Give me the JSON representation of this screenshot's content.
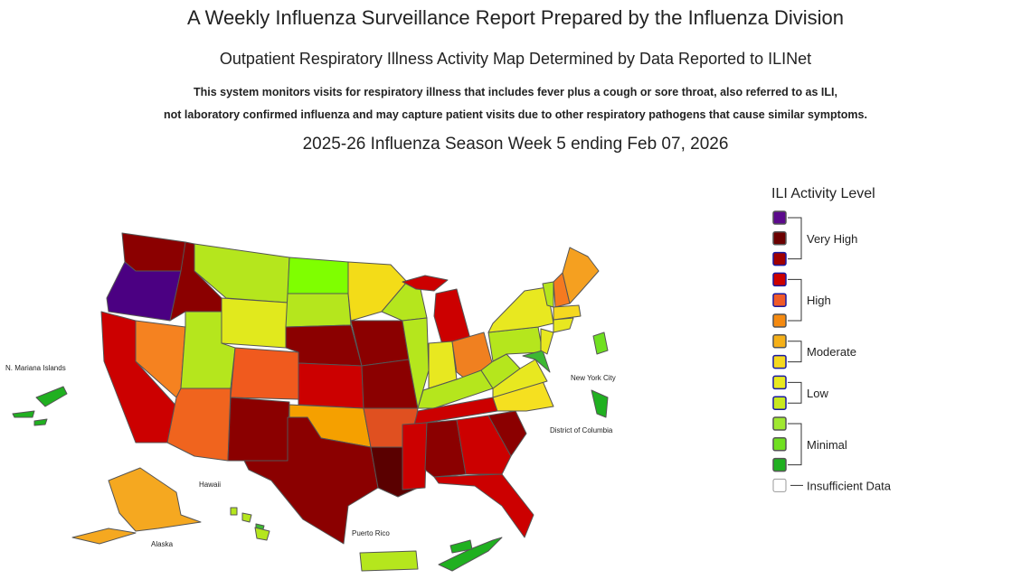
{
  "header": {
    "title": "A Weekly Influenza Surveillance Report Prepared by the Influenza Division",
    "subtitle": "Outpatient Respiratory Illness Activity Map Determined by Data Reported to ILINet",
    "description": [
      "This system monitors visits for respiratory illness that includes fever plus a cough or sore throat, also referred to as ILI,",
      "not laboratory confirmed influenza and may capture patient visits due to other respiratory pathogens that cause similar symptoms."
    ],
    "week": "2025-26 Influenza Season Week 5 ending Feb 07, 2026"
  },
  "legend": {
    "title": "ILI Activity Level",
    "groups": [
      "Very High",
      "High",
      "Moderate",
      "Low",
      "Minimal"
    ],
    "insufficient": "Insufficient Data"
  },
  "map_labels": {
    "mariana": "N. Mariana Islands",
    "nyc": "New York City",
    "dc": "District of Columbia",
    "hawaii": "Hawaii",
    "alaska": "Alaska",
    "puerto_rico": "Puerto Rico"
  }
}
